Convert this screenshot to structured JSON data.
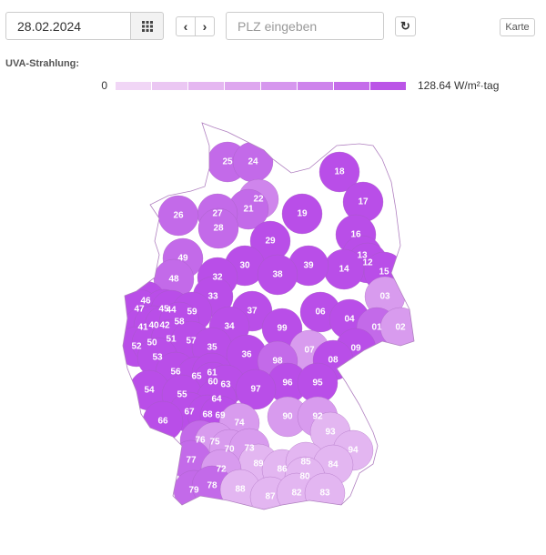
{
  "toolbar": {
    "date": "28.02.2024",
    "plz_placeholder": "PLZ eingeben",
    "map_button": "Karte"
  },
  "legend": {
    "title": "UVA-Strahlung:",
    "min_label": "0",
    "max_label": "128.64 W/m²·tag",
    "colors": [
      "#f1d6f6",
      "#ebc7f3",
      "#e5b7f1",
      "#dea7ef",
      "#d697ee",
      "#ce84ec",
      "#c56dea",
      "#bb55e7"
    ]
  },
  "regions": [
    {
      "label": "25",
      "color": "#c36ae9"
    },
    {
      "label": "24",
      "color": "#c36ae9"
    },
    {
      "label": "22",
      "color": "#cf85ec"
    },
    {
      "label": "21",
      "color": "#c36ae9"
    },
    {
      "label": "27",
      "color": "#c36ae9"
    },
    {
      "label": "28",
      "color": "#c36ae9"
    },
    {
      "label": "26",
      "color": "#c36ae9"
    },
    {
      "label": "18",
      "color": "#b94ee8"
    },
    {
      "label": "17",
      "color": "#b94ee8"
    },
    {
      "label": "19",
      "color": "#b94ee8"
    },
    {
      "label": "16",
      "color": "#b94ee8"
    },
    {
      "label": "29",
      "color": "#b94ee8"
    },
    {
      "label": "13",
      "color": "#b94ee8"
    },
    {
      "label": "12",
      "color": "#b94ee8"
    },
    {
      "label": "14",
      "color": "#b94ee8"
    },
    {
      "label": "15",
      "color": "#b94ee8"
    },
    {
      "label": "49",
      "color": "#c36ae9"
    },
    {
      "label": "30",
      "color": "#b94ee8"
    },
    {
      "label": "39",
      "color": "#b94ee8"
    },
    {
      "label": "38",
      "color": "#b94ee8"
    },
    {
      "label": "32",
      "color": "#b94ee8"
    },
    {
      "label": "48",
      "color": "#c36ae9"
    },
    {
      "label": "33",
      "color": "#b94ee8"
    },
    {
      "label": "03",
      "color": "#d89bee"
    },
    {
      "label": "46",
      "color": "#b94ee8"
    },
    {
      "label": "47",
      "color": "#b94ee8"
    },
    {
      "label": "45",
      "color": "#b94ee8"
    },
    {
      "label": "44",
      "color": "#b94ee8"
    },
    {
      "label": "59",
      "color": "#b94ee8"
    },
    {
      "label": "37",
      "color": "#b94ee8"
    },
    {
      "label": "06",
      "color": "#b94ee8"
    },
    {
      "label": "04",
      "color": "#b94ee8"
    },
    {
      "label": "41",
      "color": "#b94ee8"
    },
    {
      "label": "40",
      "color": "#b94ee8"
    },
    {
      "label": "42",
      "color": "#b94ee8"
    },
    {
      "label": "58",
      "color": "#b94ee8"
    },
    {
      "label": "34",
      "color": "#b94ee8"
    },
    {
      "label": "99",
      "color": "#b94ee8"
    },
    {
      "label": "01",
      "color": "#c36ae9"
    },
    {
      "label": "02",
      "color": "#d89bee"
    },
    {
      "label": "52",
      "color": "#b94ee8"
    },
    {
      "label": "50",
      "color": "#b94ee8"
    },
    {
      "label": "51",
      "color": "#b94ee8"
    },
    {
      "label": "57",
      "color": "#b94ee8"
    },
    {
      "label": "35",
      "color": "#b94ee8"
    },
    {
      "label": "07",
      "color": "#d89bee"
    },
    {
      "label": "09",
      "color": "#b94ee8"
    },
    {
      "label": "53",
      "color": "#b94ee8"
    },
    {
      "label": "36",
      "color": "#b94ee8"
    },
    {
      "label": "98",
      "color": "#c36ae9"
    },
    {
      "label": "08",
      "color": "#b94ee8"
    },
    {
      "label": "56",
      "color": "#b94ee8"
    },
    {
      "label": "65",
      "color": "#b94ee8"
    },
    {
      "label": "61",
      "color": "#b94ee8"
    },
    {
      "label": "60",
      "color": "#b94ee8"
    },
    {
      "label": "63",
      "color": "#b94ee8"
    },
    {
      "label": "96",
      "color": "#b94ee8"
    },
    {
      "label": "95",
      "color": "#b94ee8"
    },
    {
      "label": "54",
      "color": "#b94ee8"
    },
    {
      "label": "55",
      "color": "#b94ee8"
    },
    {
      "label": "97",
      "color": "#b94ee8"
    },
    {
      "label": "64",
      "color": "#b94ee8"
    },
    {
      "label": "67",
      "color": "#b94ee8"
    },
    {
      "label": "68",
      "color": "#b94ee8"
    },
    {
      "label": "69",
      "color": "#b94ee8"
    },
    {
      "label": "90",
      "color": "#d89bee"
    },
    {
      "label": "92",
      "color": "#d89bee"
    },
    {
      "label": "74",
      "color": "#d89bee"
    },
    {
      "label": "66",
      "color": "#b94ee8"
    },
    {
      "label": "93",
      "color": "#e3b6f1"
    },
    {
      "label": "76",
      "color": "#c36ae9"
    },
    {
      "label": "75",
      "color": "#d89bee"
    },
    {
      "label": "70",
      "color": "#d89bee"
    },
    {
      "label": "73",
      "color": "#d89bee"
    },
    {
      "label": "94",
      "color": "#e3b6f1"
    },
    {
      "label": "77",
      "color": "#c36ae9"
    },
    {
      "label": "89",
      "color": "#e3b6f1"
    },
    {
      "label": "86",
      "color": "#e3b6f1"
    },
    {
      "label": "85",
      "color": "#e3b6f1"
    },
    {
      "label": "84",
      "color": "#e3b6f1"
    },
    {
      "label": "72",
      "color": "#d89bee"
    },
    {
      "label": "80",
      "color": "#e3b6f1"
    },
    {
      "label": "79",
      "color": "#c36ae9"
    },
    {
      "label": "78",
      "color": "#c36ae9"
    },
    {
      "label": "88",
      "color": "#e3b6f1"
    },
    {
      "label": "87",
      "color": "#e3b6f1"
    },
    {
      "label": "82",
      "color": "#e3b6f1"
    },
    {
      "label": "83",
      "color": "#e3b6f1"
    }
  ]
}
